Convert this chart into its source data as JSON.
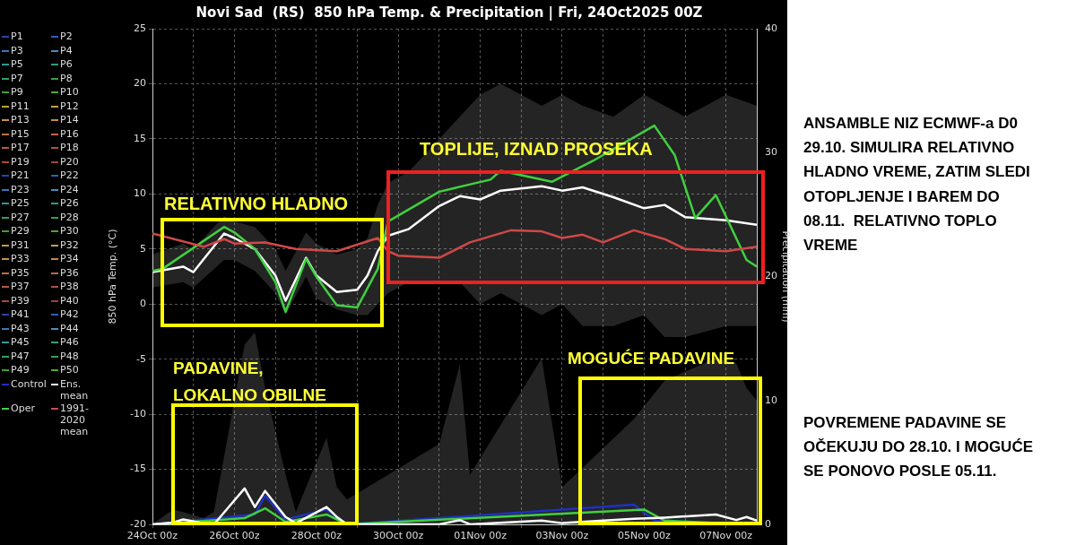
{
  "chart_data": {
    "type": "line",
    "title": "Novi Sad  (RS)  850 hPa Temp. & Precipitation | Fri, 24Oct2025 00Z",
    "ylabel": "850 hPa Temp. (°C)",
    "y2label": "Precipitation (mm)",
    "xlim": [
      "2025-10-24T00:00",
      "2025-11-07T18:00"
    ],
    "xticks": [
      {
        "value": "2025-10-24",
        "label": "24Oct 00z"
      },
      {
        "value": "2025-10-25",
        "label": null
      },
      {
        "value": "2025-10-26",
        "label": "26Oct 00z"
      },
      {
        "value": "2025-10-27",
        "label": null
      },
      {
        "value": "2025-10-28",
        "label": "28Oct 00z"
      },
      {
        "value": "2025-10-29",
        "label": null
      },
      {
        "value": "2025-10-30",
        "label": "30Oct 00z"
      },
      {
        "value": "2025-10-31",
        "label": null
      },
      {
        "value": "2025-11-01",
        "label": "01Nov 00z"
      },
      {
        "value": "2025-11-02",
        "label": null
      },
      {
        "value": "2025-11-03",
        "label": "03Nov 00z"
      },
      {
        "value": "2025-11-04",
        "label": null
      },
      {
        "value": "2025-11-05",
        "label": "05Nov 00z"
      },
      {
        "value": "2025-11-06",
        "label": null
      },
      {
        "value": "2025-11-07",
        "label": "07Nov 00z"
      }
    ],
    "ylim": [
      -20,
      25
    ],
    "yticks": [
      -20,
      -15,
      -10,
      -5,
      0,
      5,
      10,
      15,
      20,
      25
    ],
    "y2lim": [
      0,
      40
    ],
    "y2ticks": [
      0,
      10,
      20,
      30,
      40
    ],
    "grid": true,
    "legend": "left",
    "series": [
      {
        "name": "P1",
        "color": "#2846a0"
      },
      {
        "name": "P2",
        "color": "#3060b0"
      },
      {
        "name": "P3",
        "color": "#3a78b8"
      },
      {
        "name": "P4",
        "color": "#4a8cc0"
      },
      {
        "name": "P5",
        "color": "#2a9a9a"
      },
      {
        "name": "P6",
        "color": "#2aa080"
      },
      {
        "name": "P7",
        "color": "#30a060"
      },
      {
        "name": "P8",
        "color": "#38a048"
      },
      {
        "name": "P9",
        "color": "#40a030"
      },
      {
        "name": "P10",
        "color": "#50a828"
      },
      {
        "name": "P11",
        "color": "#c0a030"
      },
      {
        "name": "P12",
        "color": "#c8a040"
      },
      {
        "name": "P13",
        "color": "#c89040"
      },
      {
        "name": "P14",
        "color": "#c88848"
      },
      {
        "name": "P15",
        "color": "#c07040"
      },
      {
        "name": "P16",
        "color": "#c06848"
      },
      {
        "name": "P17",
        "color": "#b85840"
      },
      {
        "name": "P18",
        "color": "#b05040"
      },
      {
        "name": "P19",
        "color": "#a84838"
      },
      {
        "name": "P20",
        "color": "#a04040"
      },
      {
        "name": "P21",
        "color": "#2846a0"
      },
      {
        "name": "P22",
        "color": "#3060b0"
      },
      {
        "name": "P23",
        "color": "#3a78b8"
      },
      {
        "name": "P24",
        "color": "#4a8cc0"
      },
      {
        "name": "P25",
        "color": "#2a9a9a"
      },
      {
        "name": "P26",
        "color": "#2aa080"
      },
      {
        "name": "P27",
        "color": "#30a060"
      },
      {
        "name": "P28",
        "color": "#38a048"
      },
      {
        "name": "P29",
        "color": "#40a030"
      },
      {
        "name": "P30",
        "color": "#50a828"
      },
      {
        "name": "P31",
        "color": "#c0a030"
      },
      {
        "name": "P32",
        "color": "#c8a040"
      },
      {
        "name": "P33",
        "color": "#c89040"
      },
      {
        "name": "P34",
        "color": "#c88848"
      },
      {
        "name": "P35",
        "color": "#c07040"
      },
      {
        "name": "P36",
        "color": "#c06848"
      },
      {
        "name": "P37",
        "color": "#b85840"
      },
      {
        "name": "P38",
        "color": "#b05040"
      },
      {
        "name": "P39",
        "color": "#a84838"
      },
      {
        "name": "P40",
        "color": "#a04040"
      },
      {
        "name": "P41",
        "color": "#2846a0"
      },
      {
        "name": "P42",
        "color": "#3060b0"
      },
      {
        "name": "P43",
        "color": "#3a78b8"
      },
      {
        "name": "P44",
        "color": "#4a8cc0"
      },
      {
        "name": "P45",
        "color": "#2a9a9a"
      },
      {
        "name": "P46",
        "color": "#2aa080"
      },
      {
        "name": "P47",
        "color": "#30a060"
      },
      {
        "name": "P48",
        "color": "#38a048"
      },
      {
        "name": "P49",
        "color": "#40a030"
      },
      {
        "name": "P50",
        "color": "#50a828"
      },
      {
        "name": "Control",
        "color": "#2030c0",
        "axis": "y2",
        "x": [
          "2025-10-24T00:00",
          "2025-10-26T12:00",
          "2025-10-26T18:00",
          "2025-10-27T06:00",
          "2025-10-28T06:00",
          "2025-10-28T18:00",
          "2025-11-04T18:00",
          "2025-11-05T06:00",
          "2025-11-07T12:00"
        ],
        "values": [
          0,
          0.8,
          2.3,
          0.4,
          1.2,
          0,
          1.6,
          0.3,
          0
        ]
      },
      {
        "name": "Ens. mean",
        "color": "#ffffff",
        "x": [
          "2025-10-24T00:00",
          "2025-10-24T18:00",
          "2025-10-25T00:00",
          "2025-10-25T18:00",
          "2025-10-26T00:00",
          "2025-10-26T12:00",
          "2025-10-27T00:00",
          "2025-10-27T06:00",
          "2025-10-27T18:00",
          "2025-10-28T00:00",
          "2025-10-28T12:00",
          "2025-10-29T00:00",
          "2025-10-29T06:00",
          "2025-10-29T12:00",
          "2025-10-29T18:00",
          "2025-10-30T06:00",
          "2025-10-31T00:00",
          "2025-10-31T12:00",
          "2025-11-01T00:00",
          "2025-11-01T12:00",
          "2025-11-02T12:00",
          "2025-11-03T00:00",
          "2025-11-03T12:00",
          "2025-11-04T06:00",
          "2025-11-05T00:00",
          "2025-11-05T12:00",
          "2025-11-06T00:00",
          "2025-11-07T00:00",
          "2025-11-07T18:00"
        ],
        "values": [
          2.9,
          3.4,
          2.9,
          6.4,
          6.0,
          5.0,
          2.6,
          0.3,
          4.2,
          2.6,
          1.1,
          1.3,
          2.6,
          4.8,
          6.2,
          6.8,
          8.9,
          9.8,
          9.5,
          10.3,
          10.7,
          10.3,
          10.6,
          9.7,
          8.7,
          9.0,
          7.9,
          7.6,
          7.2
        ],
        "lower": [
          1.5,
          2,
          1.5,
          4,
          4,
          3,
          1,
          -1,
          2.5,
          0.5,
          -0.5,
          -1,
          -1,
          0,
          1,
          2,
          2,
          2,
          0,
          1,
          -1,
          0,
          -2,
          -2,
          -1,
          -3,
          -3,
          -2,
          -2
        ],
        "upper": [
          4.5,
          5.5,
          5,
          8,
          7.5,
          7,
          5,
          3,
          6.5,
          5.5,
          4.5,
          5,
          6,
          9,
          11,
          12,
          15,
          17,
          19,
          20,
          18,
          19,
          18,
          17,
          19,
          18,
          17,
          19,
          18
        ]
      },
      {
        "name": "Oper",
        "color": "#40d040",
        "x": [
          "2025-10-24T00:00",
          "2025-10-24T06:00",
          "2025-10-25T18:00",
          "2025-10-26T00:00",
          "2025-10-26T12:00",
          "2025-10-27T00:00",
          "2025-10-27T06:00",
          "2025-10-27T18:00",
          "2025-10-28T00:00",
          "2025-10-28T12:00",
          "2025-10-29T00:00",
          "2025-10-29T12:00",
          "2025-10-29T18:00",
          "2025-10-31T00:00",
          "2025-11-01T06:00",
          "2025-11-01T12:00",
          "2025-11-02T18:00",
          "2025-11-03T18:00",
          "2025-11-05T06:00",
          "2025-11-05T18:00",
          "2025-11-06T06:00",
          "2025-11-06T18:00",
          "2025-11-07T12:00",
          "2025-11-07T18:00"
        ],
        "values": [
          3.0,
          3.2,
          7.0,
          6.5,
          5.0,
          2.0,
          -0.7,
          4.1,
          2.5,
          -0.1,
          -0.3,
          3.2,
          7.5,
          10.2,
          11.3,
          12.1,
          11.1,
          13.0,
          16.2,
          13.5,
          7.8,
          9.9,
          4.0,
          3.4
        ]
      },
      {
        "name": "1991-2020 mean",
        "color": "#d04848",
        "x": [
          "2025-10-24T00:00",
          "2025-10-25T06:00",
          "2025-10-25T18:00",
          "2025-10-26T00:00",
          "2025-10-26T18:00",
          "2025-10-27T12:00",
          "2025-10-28T12:00",
          "2025-10-29T12:00",
          "2025-10-29T18:00",
          "2025-10-30T00:00",
          "2025-10-31T00:00",
          "2025-10-31T18:00",
          "2025-11-01T18:00",
          "2025-11-02T12:00",
          "2025-11-03T00:00",
          "2025-11-03T12:00",
          "2025-11-04T00:00",
          "2025-11-04T18:00",
          "2025-11-05T12:00",
          "2025-11-06T00:00",
          "2025-11-07T00:00",
          "2025-11-07T18:00"
        ],
        "values": [
          6.4,
          5.2,
          5.9,
          5.5,
          5.6,
          5.0,
          4.8,
          6.0,
          4.8,
          4.4,
          4.2,
          5.6,
          6.7,
          6.6,
          6.0,
          6.3,
          5.6,
          6.7,
          5.9,
          5.0,
          4.8,
          5.2
        ]
      },
      {
        "color": "#40d040",
        "axis": "y2",
        "x": [
          "2025-10-24T00:00",
          "2025-10-26T06:00",
          "2025-10-26T18:00",
          "2025-10-27T06:00",
          "2025-10-28T06:00",
          "2025-10-28T18:00",
          "2025-11-05T00:00",
          "2025-11-05T12:00",
          "2025-11-07T12:00"
        ],
        "values": [
          0,
          0.5,
          1.3,
          0.2,
          0.8,
          0,
          1.2,
          0.3,
          0
        ]
      },
      {
        "color": "#ffffff",
        "axis": "y2",
        "x": [
          "2025-10-24T00:00",
          "2025-10-24T12:00",
          "2025-10-24T18:00",
          "2025-10-25T06:00",
          "2025-10-25T12:00",
          "2025-10-26T06:00",
          "2025-10-26T12:00",
          "2025-10-26T18:00",
          "2025-10-27T06:00",
          "2025-10-27T12:00",
          "2025-10-28T06:00",
          "2025-10-28T12:00",
          "2025-10-28T18:00",
          "2025-10-31T00:00",
          "2025-10-31T12:00",
          "2025-10-31T18:00",
          "2025-11-02T12:00",
          "2025-11-03T00:00",
          "2025-11-04T18:00",
          "2025-11-05T12:00",
          "2025-11-06T18:00",
          "2025-11-07T06:00",
          "2025-11-07T12:00",
          "2025-11-07T18:00"
        ],
        "values": [
          0,
          0.15,
          0.4,
          0.1,
          0,
          2.9,
          1.4,
          2.7,
          0.6,
          0.1,
          1.4,
          0.6,
          0,
          0,
          0.35,
          0,
          0.3,
          0.1,
          0.45,
          0.55,
          0.8,
          0.35,
          0.6,
          0.3
        ],
        "lower": [
          0,
          0,
          0,
          0,
          0,
          0,
          0,
          0,
          0,
          0,
          0,
          0,
          0,
          0,
          0,
          0,
          0,
          0,
          0,
          0,
          0,
          0,
          0,
          0
        ],
        "upper": [
          0,
          1.2,
          1,
          0.5,
          1,
          14.5,
          15.5,
          11,
          4,
          1,
          7,
          3,
          2,
          6.5,
          12.9,
          4,
          13.4,
          3,
          8.5,
          11.6,
          13.4,
          13,
          11,
          10
        ]
      }
    ],
    "annotations": [
      "RELATIVNO HLADNO",
      "TOPLIJE, IZNAD PROSEKA",
      "PADAVINE, LOKALNO OBILNE",
      "MOGUĆE PADAVINE",
      "ANSAMBLE NIZ ECMWF-a D0 29.10. SIMULIRA RELATIVNO HLADNO VREME, ZATIM SLEDI OTOPLJENJE I BAREM DO 08.11.  RELATIVNO TOPLO VREME",
      "POVREMENE PADAVINE SE OČEKUJU DO 28.10. I MOGUĆE SE PONOVO POSLE 05.11."
    ]
  }
}
